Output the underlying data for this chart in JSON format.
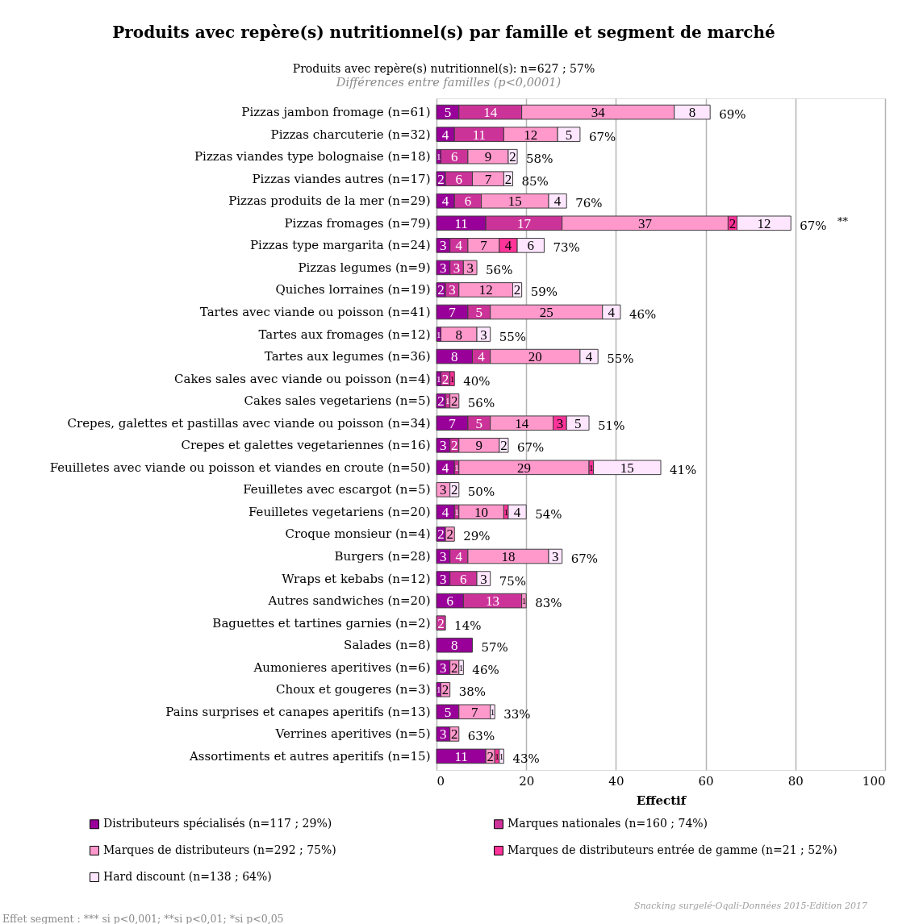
{
  "chart_data": {
    "type": "bar",
    "orientation": "horizontal",
    "stacked": true,
    "title": "Produits avec repère(s) nutritionnel(s) par famille et segment de marché",
    "subtitle": "Produits avec repère(s) nutritionnel(s): n=627 ; 57%",
    "xlabel": "Effectif",
    "categories": [
      "Pizzas jambon fromage (n=61)",
      "Pizzas charcuterie (n=32)",
      "Pizzas viandes type bolognaise (n=18)",
      "Pizzas viandes autres (n=17)",
      "Pizzas produits de la mer (n=29)",
      "Pizzas fromages (n=79)",
      "Pizzas type margarita (n=24)",
      "Pizzas legumes (n=9)",
      "Quiches lorraines (n=19)",
      "Tartes avec viande ou poisson (n=41)",
      "Tartes aux fromages (n=12)",
      "Tartes aux legumes (n=36)",
      "Cakes sales avec viande ou poisson (n=4)",
      "Cakes sales vegetariens (n=5)",
      "Crepes, galettes et pastillas avec viande ou poisson (n=34)",
      "Crepes et galettes vegetariennes (n=16)",
      "Feuilletes avec viande ou poisson et viandes en croute (n=50)",
      "Feuilletes avec escargot (n=5)",
      "Feuilletes vegetariens (n=20)",
      "Croque monsieur (n=4)",
      "Burgers (n=28)",
      "Wraps et kebabs (n=12)",
      "Autres sandwiches (n=20)",
      "Baguettes et tartines garnies (n=2)",
      "Salades (n=8)",
      "Aumonieres aperitives (n=6)",
      "Choux et gougeres (n=3)",
      "Pains surprises et canapes aperitifs (n=13)",
      "Verrines aperitives (n=5)",
      "Assortiments et autres aperitifs (n=15)"
    ],
    "series": [
      {
        "name": "Distributeurs spécialisés (n=117 ; 29%)",
        "color": "#990099",
        "values": [
          5,
          4,
          1,
          2,
          4,
          11,
          3,
          3,
          2,
          7,
          1,
          8,
          1,
          2,
          7,
          3,
          4,
          null,
          4,
          2,
          3,
          3,
          6,
          null,
          8,
          3,
          1,
          5,
          3,
          11
        ]
      },
      {
        "name": "Marques nationales (n=160 ; 74%)",
        "color": "#cc3399",
        "values": [
          14,
          11,
          6,
          6,
          6,
          17,
          4,
          3,
          3,
          5,
          null,
          4,
          2,
          1,
          5,
          2,
          1,
          null,
          1,
          null,
          4,
          6,
          13,
          2,
          null,
          null,
          null,
          null,
          null,
          null
        ]
      },
      {
        "name": "Marques de distributeurs (n=292 ; 75%)",
        "color": "#ff99cc",
        "values": [
          34,
          12,
          9,
          7,
          15,
          37,
          7,
          3,
          12,
          25,
          8,
          20,
          null,
          2,
          14,
          9,
          29,
          3,
          10,
          2,
          18,
          null,
          1,
          null,
          null,
          2,
          2,
          7,
          2,
          2
        ]
      },
      {
        "name": "Marques de distributeurs entrée de gamme (n=21 ; 52%)",
        "color": "#ff3399",
        "values": [
          null,
          null,
          null,
          null,
          null,
          2,
          4,
          null,
          null,
          null,
          null,
          null,
          1,
          null,
          3,
          null,
          1,
          null,
          1,
          null,
          null,
          null,
          null,
          null,
          null,
          null,
          null,
          null,
          null,
          1
        ]
      },
      {
        "name": "Hard discount (n=138 ; 64%)",
        "color": "#ffe6ff",
        "values": [
          8,
          5,
          2,
          2,
          4,
          12,
          6,
          null,
          2,
          4,
          3,
          4,
          null,
          null,
          5,
          2,
          15,
          2,
          4,
          null,
          3,
          3,
          null,
          null,
          null,
          1,
          null,
          1,
          null,
          1
        ]
      }
    ],
    "xlim": [
      0,
      100
    ],
    "xticks": [
      0,
      20,
      40,
      60,
      80,
      100
    ],
    "grid": "x",
    "legend": "bottom",
    "data_labels": true,
    "annotations": [
      {
        "text": "69%",
        "x": 61,
        "y": "Pizzas jambon fromage (n=61)"
      },
      {
        "text": "67%",
        "x": 32,
        "y": "Pizzas charcuterie (n=32)"
      },
      {
        "text": "58%",
        "x": 18,
        "y": "Pizzas viandes type bolognaise (n=18)"
      },
      {
        "text": "85%",
        "x": 17,
        "y": "Pizzas viandes autres (n=17)"
      },
      {
        "text": "76%",
        "x": 29,
        "y": "Pizzas produits de la mer (n=29)"
      },
      {
        "text": "67%",
        "x": 79,
        "y": "Pizzas fromages (n=79)"
      },
      {
        "text": "73%",
        "x": 24,
        "y": "Pizzas type margarita (n=24)"
      },
      {
        "text": "56%",
        "x": 9,
        "y": "Pizzas legumes (n=9)"
      },
      {
        "text": "59%",
        "x": 19,
        "y": "Quiches lorraines (n=19)"
      },
      {
        "text": "46%",
        "x": 41,
        "y": "Tartes avec viande ou poisson (n=41)"
      },
      {
        "text": "55%",
        "x": 12,
        "y": "Tartes aux fromages (n=12)"
      },
      {
        "text": "55%",
        "x": 36,
        "y": "Tartes aux legumes (n=36)"
      },
      {
        "text": "40%",
        "x": 4,
        "y": "Cakes sales avec viande ou poisson (n=4)"
      },
      {
        "text": "56%",
        "x": 5,
        "y": "Cakes sales vegetariens (n=5)"
      },
      {
        "text": "51%",
        "x": 34,
        "y": "Crepes, galettes et pastillas avec viande ou poisson (n=34)"
      },
      {
        "text": "67%",
        "x": 16,
        "y": "Crepes et galettes vegetariennes (n=16)"
      },
      {
        "text": "41%",
        "x": 50,
        "y": "Feuilletes avec viande ou poisson et viandes en croute (n=50)"
      },
      {
        "text": "50%",
        "x": 5,
        "y": "Feuilletes avec escargot (n=5)"
      },
      {
        "text": "54%",
        "x": 20,
        "y": "Feuilletes vegetariens (n=20)"
      },
      {
        "text": "29%",
        "x": 4,
        "y": "Croque monsieur (n=4)"
      },
      {
        "text": "67%",
        "x": 28,
        "y": "Burgers (n=28)"
      },
      {
        "text": "75%",
        "x": 12,
        "y": "Wraps et kebabs (n=12)"
      },
      {
        "text": "83%",
        "x": 20,
        "y": "Autres sandwiches (n=20)"
      },
      {
        "text": "14%",
        "x": 2,
        "y": "Baguettes et tartines garnies (n=2)"
      },
      {
        "text": "57%",
        "x": 8,
        "y": "Salades (n=8)"
      },
      {
        "text": "46%",
        "x": 6,
        "y": "Aumonieres aperitives (n=6)"
      },
      {
        "text": "38%",
        "x": 3,
        "y": "Choux et gougeres (n=3)"
      },
      {
        "text": "33%",
        "x": 13,
        "y": "Pains surprises et canapes aperitifs (n=13)"
      },
      {
        "text": "63%",
        "x": 5,
        "y": "Verrines aperitives (n=5)"
      },
      {
        "text": "43%",
        "x": 15,
        "y": "Assortiments et autres aperitifs (n=15)"
      },
      "Différences entre familles (p<0,0001)",
      "**",
      "Snacking surgelé-Oqali-Données 2015-Edition 2017",
      "Effet segment : *** si p<0,001; **si p<0,01; *si p<0,05"
    ]
  }
}
